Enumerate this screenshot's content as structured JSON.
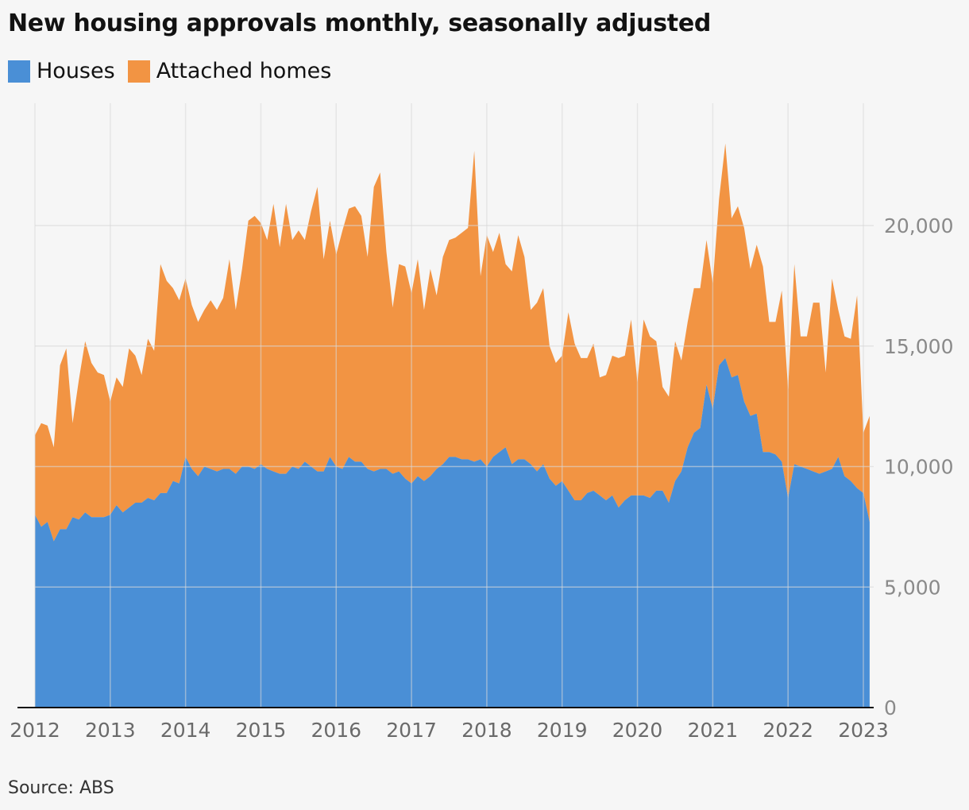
{
  "title": "New housing approvals monthly, seasonally adjusted",
  "source": "Source: ABS",
  "colors": {
    "houses": "#4a8fd6",
    "attached": "#f29443",
    "grid": "#d8d8d8",
    "axis": "#121212"
  },
  "chart_data": {
    "type": "area",
    "stacked": true,
    "title": "New housing approvals monthly, seasonally adjusted",
    "xlim": [
      2012,
      2023
    ],
    "ylim": [
      0,
      24000
    ],
    "x_ticks": [
      "2012",
      "2013",
      "2014",
      "2015",
      "2016",
      "2017",
      "2018",
      "2019",
      "2020",
      "2021",
      "2022",
      "2023"
    ],
    "y_ticks": [
      {
        "value": 0,
        "label": "0"
      },
      {
        "value": 5000,
        "label": "5,000"
      },
      {
        "value": 10000,
        "label": "10,000"
      },
      {
        "value": 15000,
        "label": "15,000"
      },
      {
        "value": 20000,
        "label": "20,000"
      }
    ],
    "y_axis_position": "right",
    "grid": true,
    "legend_position": "top-left",
    "x_start": "2012-01",
    "frequency": "monthly",
    "series": [
      {
        "name": "Houses",
        "values": [
          8000,
          7500,
          7700,
          6900,
          7400,
          7400,
          7900,
          7800,
          8100,
          7900,
          7900,
          7900,
          8000,
          8400,
          8100,
          8300,
          8500,
          8500,
          8700,
          8600,
          8900,
          8900,
          9400,
          9300,
          10400,
          9900,
          9600,
          10000,
          9900,
          9800,
          9900,
          9900,
          9700,
          10000,
          10000,
          9900,
          10100,
          9900,
          9800,
          9700,
          9700,
          10000,
          9900,
          10200,
          10000,
          9800,
          9800,
          10400,
          10000,
          9900,
          10400,
          10200,
          10200,
          9900,
          9800,
          9900,
          9900,
          9700,
          9800,
          9500,
          9300,
          9600,
          9400,
          9600,
          9900,
          10100,
          10400,
          10400,
          10300,
          10300,
          10200,
          10300,
          10000,
          10400,
          10600,
          10800,
          10100,
          10300,
          10300,
          10100,
          9800,
          10100,
          9500,
          9200,
          9400,
          9000,
          8600,
          8600,
          8900,
          9000,
          8800,
          8600,
          8800,
          8300,
          8600,
          8800,
          8800,
          8800,
          8700,
          9000,
          9000,
          8500,
          9400,
          9800,
          10800,
          11400,
          11600,
          13400,
          12400,
          14200,
          14500,
          13700,
          13800,
          12700,
          12100,
          12200,
          10600,
          10600,
          10500,
          10200,
          8700,
          10100,
          10000,
          9900,
          9800,
          9700,
          9800,
          9900,
          10400,
          9600,
          9400,
          9100,
          8900,
          7700
        ],
        "color": "#4a8fd6"
      },
      {
        "name": "Attached homes",
        "values": [
          3300,
          4300,
          4000,
          3900,
          6800,
          7500,
          3900,
          5800,
          7100,
          6400,
          6000,
          5900,
          4700,
          5300,
          5200,
          6600,
          6100,
          5300,
          6600,
          6200,
          9500,
          8800,
          8000,
          7600,
          7400,
          6800,
          6400,
          6500,
          7000,
          6700,
          7100,
          8700,
          6800,
          8200,
          10200,
          10500,
          10000,
          9500,
          11100,
          9400,
          11200,
          9400,
          9900,
          9200,
          10600,
          11800,
          8800,
          9800,
          8800,
          9900,
          10300,
          10600,
          10200,
          8800,
          11800,
          12300,
          9000,
          6900,
          8600,
          8800,
          7900,
          9000,
          7100,
          8600,
          7200,
          8600,
          9000,
          9100,
          9400,
          9600,
          12900,
          7600,
          9600,
          8500,
          9100,
          7600,
          8000,
          9300,
          8400,
          6400,
          7000,
          7300,
          5500,
          5100,
          5200,
          7400,
          6500,
          5900,
          5600,
          6100,
          4900,
          5200,
          5800,
          6200,
          6000,
          7300,
          4700,
          7300,
          6700,
          6200,
          4300,
          4400,
          5800,
          4600,
          5200,
          6000,
          5800,
          6000,
          5200,
          6900,
          8900,
          6600,
          7000,
          7200,
          6100,
          7000,
          7700,
          5400,
          5500,
          7100,
          4500,
          8300,
          5400,
          5500,
          7000,
          7100,
          4100,
          7900,
          6100,
          5800,
          5900,
          8000,
          2500,
          4400
        ],
        "color": "#f29443"
      }
    ]
  }
}
